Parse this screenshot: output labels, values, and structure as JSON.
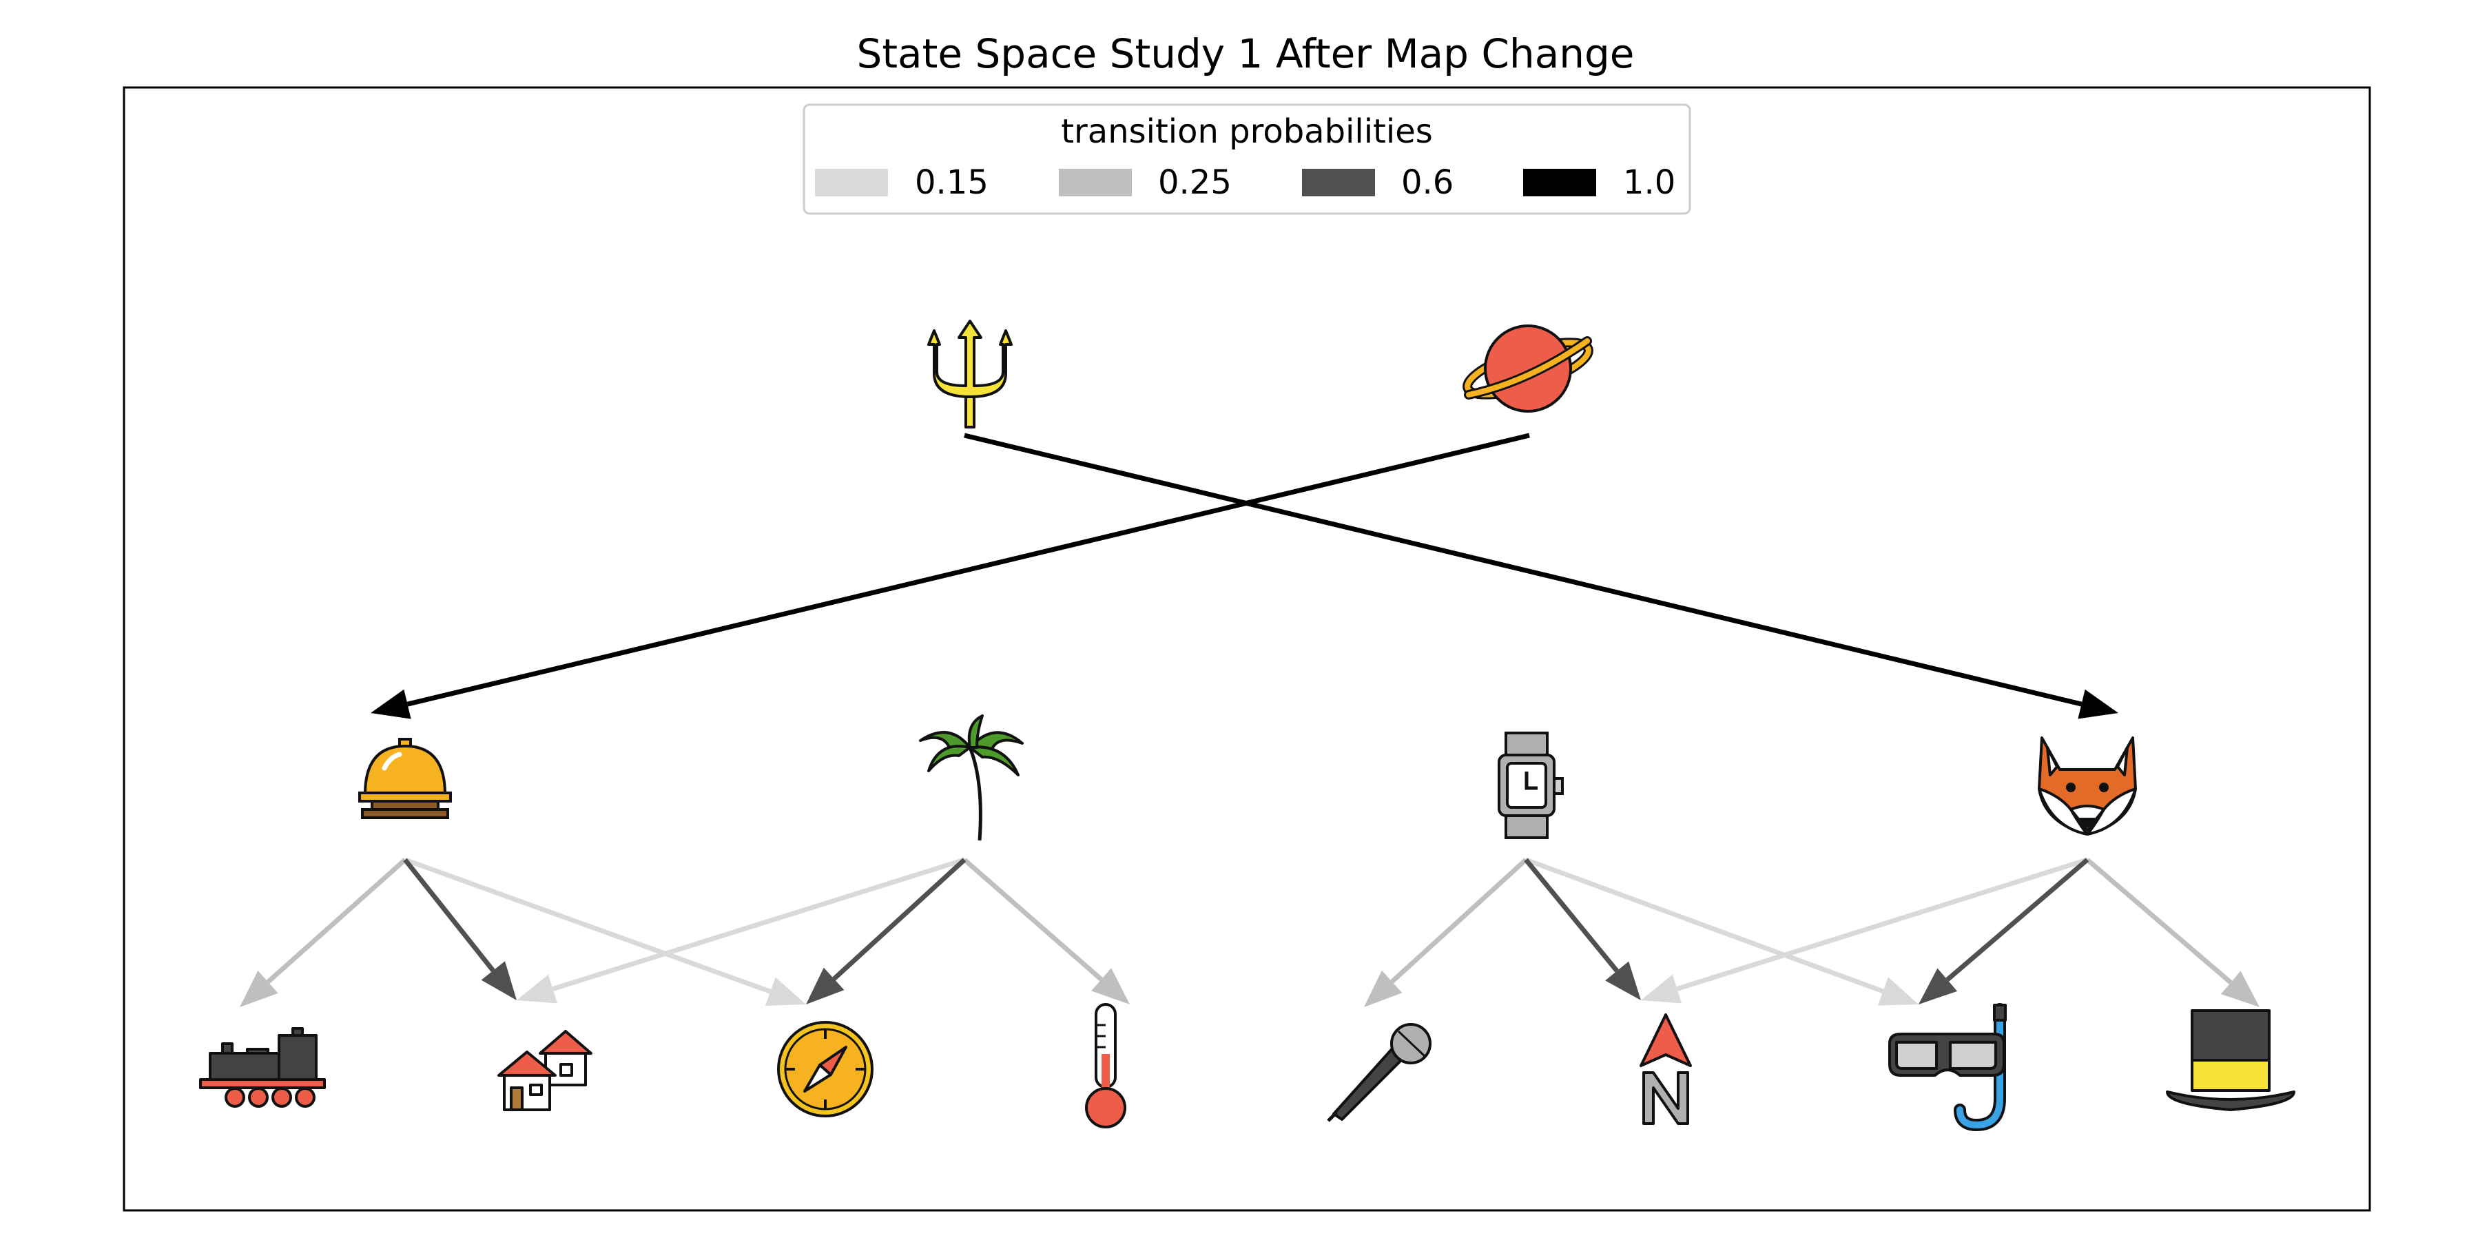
{
  "title": "State Space Study 1 After Map Change",
  "legend": {
    "title": "transition probabilities",
    "entries": [
      {
        "label": "0.15",
        "color": "#d9d9d9"
      },
      {
        "label": "0.25",
        "color": "#bfbfbf"
      },
      {
        "label": "0.6",
        "color": "#505050"
      },
      {
        "label": "1.0",
        "color": "#000000"
      }
    ]
  },
  "nodes": [
    {
      "id": "trident",
      "icon": "trident-icon"
    },
    {
      "id": "planet",
      "icon": "ringed-planet-icon"
    },
    {
      "id": "bell",
      "icon": "service-bell-icon"
    },
    {
      "id": "palm",
      "icon": "palm-tree-icon"
    },
    {
      "id": "watch",
      "icon": "wristwatch-icon"
    },
    {
      "id": "fox",
      "icon": "fox-icon"
    },
    {
      "id": "train",
      "icon": "locomotive-icon"
    },
    {
      "id": "houses",
      "icon": "houses-icon"
    },
    {
      "id": "compass",
      "icon": "compass-icon"
    },
    {
      "id": "thermometer",
      "icon": "thermometer-icon"
    },
    {
      "id": "microphone",
      "icon": "microphone-icon"
    },
    {
      "id": "north",
      "icon": "north-arrow-icon"
    },
    {
      "id": "goggles",
      "icon": "diving-mask-snorkel-icon"
    },
    {
      "id": "tophat",
      "icon": "top-hat-icon"
    }
  ],
  "edges": [
    {
      "from": "trident",
      "to": "fox",
      "p": 1.0
    },
    {
      "from": "planet",
      "to": "bell",
      "p": 1.0
    },
    {
      "from": "bell",
      "to": "train",
      "p": 0.25
    },
    {
      "from": "bell",
      "to": "houses",
      "p": 0.6
    },
    {
      "from": "bell",
      "to": "compass",
      "p": 0.15
    },
    {
      "from": "palm",
      "to": "houses",
      "p": 0.15
    },
    {
      "from": "palm",
      "to": "compass",
      "p": 0.6
    },
    {
      "from": "palm",
      "to": "thermometer",
      "p": 0.25
    },
    {
      "from": "watch",
      "to": "microphone",
      "p": 0.25
    },
    {
      "from": "watch",
      "to": "north",
      "p": 0.6
    },
    {
      "from": "watch",
      "to": "goggles",
      "p": 0.15
    },
    {
      "from": "fox",
      "to": "north",
      "p": 0.15
    },
    {
      "from": "fox",
      "to": "goggles",
      "p": 0.6
    },
    {
      "from": "fox",
      "to": "tophat",
      "p": 0.25
    }
  ]
}
